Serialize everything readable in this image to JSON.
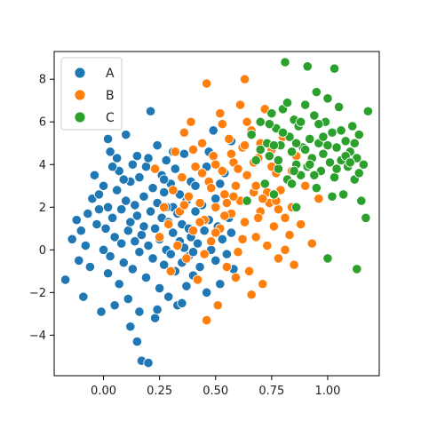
{
  "chart_data": {
    "type": "scatter",
    "title": "",
    "xlabel": "",
    "ylabel": "",
    "xlim": [
      -0.22,
      1.23
    ],
    "ylim": [
      -5.9,
      9.3
    ],
    "xticks": [
      0.0,
      0.25,
      0.5,
      0.75,
      1.0
    ],
    "xtick_labels": [
      "0.00",
      "0.25",
      "0.50",
      "0.75",
      "1.00"
    ],
    "yticks": [
      -4,
      -2,
      0,
      2,
      4,
      6,
      8
    ],
    "ytick_labels": [
      "−4",
      "−2",
      "0",
      "2",
      "4",
      "6",
      "8"
    ],
    "grid": false,
    "legend": {
      "placement": "top-left"
    },
    "series": [
      {
        "name": "A",
        "color": "#1f77b4",
        "points": [
          [
            -0.17,
            -1.4
          ],
          [
            -0.14,
            0.5
          ],
          [
            -0.12,
            1.4
          ],
          [
            -0.11,
            -0.5
          ],
          [
            -0.1,
            0.9
          ],
          [
            -0.09,
            -2.2
          ],
          [
            -0.08,
            0.2
          ],
          [
            -0.07,
            1.7
          ],
          [
            -0.06,
            -0.8
          ],
          [
            -0.05,
            2.4
          ],
          [
            -0.04,
            3.5
          ],
          [
            -0.03,
            1.2
          ],
          [
            -0.02,
            2.6
          ],
          [
            -0.01,
            -2.9
          ],
          [
            0.0,
            0.0
          ],
          [
            0.0,
            3.0
          ],
          [
            0.01,
            1.0
          ],
          [
            0.02,
            -1.1
          ],
          [
            0.02,
            2.0
          ],
          [
            0.03,
            -0.3
          ],
          [
            0.03,
            4.6
          ],
          [
            0.04,
            1.5
          ],
          [
            0.05,
            -2.6
          ],
          [
            0.05,
            0.6
          ],
          [
            0.06,
            2.8
          ],
          [
            0.07,
            3.7
          ],
          [
            0.07,
            -1.6
          ],
          [
            0.08,
            0.3
          ],
          [
            0.08,
            1.9
          ],
          [
            0.09,
            -0.6
          ],
          [
            0.1,
            2.3
          ],
          [
            0.1,
            5.4
          ],
          [
            0.11,
            0.9
          ],
          [
            0.11,
            -2.3
          ],
          [
            0.12,
            3.2
          ],
          [
            0.12,
            1.3
          ],
          [
            0.13,
            -0.9
          ],
          [
            0.13,
            4.0
          ],
          [
            0.14,
            0.4
          ],
          [
            0.14,
            2.1
          ],
          [
            0.15,
            -4.3
          ],
          [
            0.15,
            1.6
          ],
          [
            0.16,
            -2.9
          ],
          [
            0.16,
            3.4
          ],
          [
            0.17,
            0.7
          ],
          [
            0.17,
            -5.2
          ],
          [
            0.18,
            2.5
          ],
          [
            0.18,
            1.1
          ],
          [
            0.19,
            -1.3
          ],
          [
            0.19,
            3.9
          ],
          [
            0.2,
            0.2
          ],
          [
            0.2,
            -5.3
          ],
          [
            0.21,
            1.8
          ],
          [
            0.21,
            6.5
          ],
          [
            0.22,
            -0.4
          ],
          [
            0.22,
            2.9
          ],
          [
            0.23,
            -3.2
          ],
          [
            0.23,
            1.0
          ],
          [
            0.24,
            4.9
          ],
          [
            0.24,
            2.2
          ],
          [
            0.25,
            -1.8
          ],
          [
            0.25,
            0.5
          ],
          [
            0.26,
            3.5
          ],
          [
            0.26,
            1.5
          ],
          [
            0.27,
            -0.7
          ],
          [
            0.27,
            2.7
          ],
          [
            0.28,
            0.0
          ],
          [
            0.28,
            4.2
          ],
          [
            0.29,
            -2.2
          ],
          [
            0.29,
            1.3
          ],
          [
            0.3,
            3.1
          ],
          [
            0.3,
            -0.2
          ],
          [
            0.31,
            2.0
          ],
          [
            0.31,
            0.8
          ],
          [
            0.32,
            -1.0
          ],
          [
            0.32,
            3.8
          ],
          [
            0.33,
            1.7
          ],
          [
            0.33,
            -2.6
          ],
          [
            0.34,
            0.4
          ],
          [
            0.34,
            2.6
          ],
          [
            0.35,
            -0.6
          ],
          [
            0.35,
            1.2
          ],
          [
            0.36,
            4.5
          ],
          [
            0.36,
            0.1
          ],
          [
            0.37,
            -1.7
          ],
          [
            0.37,
            2.3
          ],
          [
            0.38,
            1.0
          ],
          [
            0.38,
            -0.3
          ],
          [
            0.39,
            0.6
          ],
          [
            0.39,
            3.2
          ],
          [
            0.4,
            -1.2
          ],
          [
            0.41,
            1.8
          ],
          [
            0.42,
            0.3
          ],
          [
            0.43,
            -0.8
          ],
          [
            0.44,
            2.1
          ],
          [
            0.45,
            0.9
          ],
          [
            0.46,
            -2.0
          ],
          [
            0.47,
            1.4
          ],
          [
            0.48,
            0.0
          ],
          [
            0.49,
            5.6
          ],
          [
            0.5,
            -0.5
          ],
          [
            0.5,
            2.4
          ],
          [
            0.51,
            1.1
          ],
          [
            0.52,
            -1.6
          ],
          [
            0.53,
            0.5
          ],
          [
            0.54,
            3.6
          ],
          [
            0.55,
            -0.2
          ],
          [
            0.56,
            1.5
          ],
          [
            0.57,
            0.8
          ],
          [
            0.58,
            -0.9
          ],
          [
            0.02,
            5.2
          ],
          [
            0.06,
            4.3
          ],
          [
            0.09,
            3.3
          ],
          [
            0.12,
            -3.6
          ],
          [
            0.15,
            4.4
          ],
          [
            0.2,
            4.3
          ],
          [
            0.24,
            -2.8
          ],
          [
            0.27,
            3.3
          ],
          [
            0.31,
            4.6
          ],
          [
            0.35,
            -2.5
          ],
          [
            0.41,
            3.0
          ],
          [
            0.46,
            3.9
          ],
          [
            0.52,
            3.1
          ],
          [
            -0.02,
            1.9
          ],
          [
            0.04,
            3.9
          ],
          [
            0.16,
            -0.1
          ],
          [
            0.28,
            2.0
          ],
          [
            0.4,
            -0.1
          ],
          [
            0.47,
            4.6
          ],
          [
            0.57,
            5.1
          ]
        ]
      },
      {
        "name": "B",
        "color": "#ff7f0e",
        "points": [
          [
            0.23,
            3.8
          ],
          [
            0.25,
            0.6
          ],
          [
            0.27,
            2.0
          ],
          [
            0.29,
            1.2
          ],
          [
            0.3,
            -1.0
          ],
          [
            0.31,
            2.8
          ],
          [
            0.32,
            4.6
          ],
          [
            0.33,
            0.2
          ],
          [
            0.34,
            1.8
          ],
          [
            0.35,
            3.4
          ],
          [
            0.36,
            5.5
          ],
          [
            0.37,
            -0.4
          ],
          [
            0.38,
            2.5
          ],
          [
            0.39,
            6.0
          ],
          [
            0.4,
            0.9
          ],
          [
            0.41,
            3.9
          ],
          [
            0.42,
            -1.4
          ],
          [
            0.43,
            2.2
          ],
          [
            0.44,
            5.0
          ],
          [
            0.45,
            1.4
          ],
          [
            0.46,
            7.8
          ],
          [
            0.46,
            -3.3
          ],
          [
            0.47,
            3.2
          ],
          [
            0.48,
            0.4
          ],
          [
            0.49,
            4.4
          ],
          [
            0.5,
            2.0
          ],
          [
            0.51,
            -2.6
          ],
          [
            0.52,
            6.4
          ],
          [
            0.52,
            1.0
          ],
          [
            0.53,
            3.7
          ],
          [
            0.54,
            2.6
          ],
          [
            0.55,
            -0.8
          ],
          [
            0.56,
            5.2
          ],
          [
            0.57,
            1.7
          ],
          [
            0.58,
            4.1
          ],
          [
            0.59,
            3.0
          ],
          [
            0.6,
            -0.1
          ],
          [
            0.61,
            6.8
          ],
          [
            0.61,
            2.3
          ],
          [
            0.62,
            4.8
          ],
          [
            0.63,
            8.0
          ],
          [
            0.63,
            1.3
          ],
          [
            0.64,
            3.5
          ],
          [
            0.65,
            -1.0
          ],
          [
            0.66,
            5.6
          ],
          [
            0.67,
            2.7
          ],
          [
            0.68,
            0.6
          ],
          [
            0.69,
            4.3
          ],
          [
            0.7,
            1.8
          ],
          [
            0.71,
            -1.6
          ],
          [
            0.72,
            3.1
          ],
          [
            0.72,
            6.6
          ],
          [
            0.73,
            0.2
          ],
          [
            0.74,
            2.2
          ],
          [
            0.75,
            4.7
          ],
          [
            0.76,
            1.1
          ],
          [
            0.77,
            3.6
          ],
          [
            0.78,
            -0.4
          ],
          [
            0.79,
            2.8
          ],
          [
            0.8,
            5.3
          ],
          [
            0.81,
            1.5
          ],
          [
            0.82,
            3.3
          ],
          [
            0.83,
            0.7
          ],
          [
            0.84,
            2.0
          ],
          [
            0.85,
            -0.7
          ],
          [
            0.86,
            4.4
          ],
          [
            0.88,
            1.2
          ],
          [
            0.9,
            3.0
          ],
          [
            0.93,
            0.3
          ],
          [
            0.96,
            2.4
          ],
          [
            0.4,
            4.7
          ],
          [
            0.44,
            3.6
          ],
          [
            0.48,
            2.9
          ],
          [
            0.53,
            5.9
          ],
          [
            0.57,
            4.5
          ],
          [
            0.6,
            3.8
          ],
          [
            0.64,
            6.0
          ],
          [
            0.67,
            4.1
          ],
          [
            0.7,
            5.0
          ],
          [
            0.75,
            3.9
          ],
          [
            0.45,
            -0.2
          ],
          [
            0.5,
            0.8
          ],
          [
            0.55,
            2.2
          ],
          [
            0.59,
            -1.3
          ],
          [
            0.62,
            0.5
          ],
          [
            0.66,
            -2.1
          ],
          [
            0.69,
            1.5
          ],
          [
            0.73,
            2.7
          ],
          [
            0.78,
            1.9
          ],
          [
            0.81,
            0.0
          ],
          [
            0.36,
            2.1
          ],
          [
            0.43,
            1.3
          ],
          [
            0.5,
            4.0
          ],
          [
            0.54,
            1.6
          ],
          [
            0.58,
            2.5
          ],
          [
            0.63,
            4.9
          ],
          [
            0.68,
            3.0
          ],
          [
            0.71,
            2.4
          ],
          [
            0.77,
            2.3
          ],
          [
            0.84,
            3.7
          ]
        ]
      },
      {
        "name": "C",
        "color": "#2ca02c",
        "points": [
          [
            0.64,
            2.3
          ],
          [
            0.66,
            5.4
          ],
          [
            0.68,
            4.2
          ],
          [
            0.7,
            6.0
          ],
          [
            0.72,
            3.1
          ],
          [
            0.73,
            5.0
          ],
          [
            0.74,
            4.4
          ],
          [
            0.75,
            6.4
          ],
          [
            0.76,
            2.6
          ],
          [
            0.77,
            5.7
          ],
          [
            0.78,
            3.8
          ],
          [
            0.79,
            4.9
          ],
          [
            0.8,
            6.6
          ],
          [
            0.81,
            8.8
          ],
          [
            0.82,
            3.3
          ],
          [
            0.83,
            5.3
          ],
          [
            0.84,
            4.6
          ],
          [
            0.85,
            6.1
          ],
          [
            0.86,
            2.0
          ],
          [
            0.86,
            4.0
          ],
          [
            0.87,
            5.8
          ],
          [
            0.88,
            3.5
          ],
          [
            0.89,
            4.8
          ],
          [
            0.9,
            6.8
          ],
          [
            0.91,
            8.6
          ],
          [
            0.91,
            3.9
          ],
          [
            0.92,
            5.2
          ],
          [
            0.93,
            4.3
          ],
          [
            0.94,
            6.3
          ],
          [
            0.95,
            2.9
          ],
          [
            0.96,
            5.0
          ],
          [
            0.97,
            3.7
          ],
          [
            0.98,
            4.5
          ],
          [
            0.99,
            6.0
          ],
          [
            1.0,
            -0.4
          ],
          [
            1.01,
            4.1
          ],
          [
            1.02,
            5.5
          ],
          [
            1.03,
            8.5
          ],
          [
            1.03,
            3.4
          ],
          [
            1.04,
            4.8
          ],
          [
            1.05,
            6.7
          ],
          [
            1.06,
            4.2
          ],
          [
            1.07,
            2.6
          ],
          [
            1.08,
            5.1
          ],
          [
            1.09,
            3.9
          ],
          [
            1.1,
            4.6
          ],
          [
            1.11,
            5.8
          ],
          [
            1.12,
            3.3
          ],
          [
            1.13,
            -0.9
          ],
          [
            1.13,
            4.3
          ],
          [
            1.14,
            5.4
          ],
          [
            1.15,
            2.3
          ],
          [
            1.16,
            4.0
          ],
          [
            1.17,
            1.5
          ],
          [
            1.18,
            6.5
          ],
          [
            0.76,
            4.9
          ],
          [
            0.8,
            5.5
          ],
          [
            0.84,
            3.1
          ],
          [
            0.88,
            6.0
          ],
          [
            0.92,
            4.0
          ],
          [
            0.96,
            5.9
          ],
          [
            1.0,
            4.9
          ],
          [
            1.04,
            3.8
          ],
          [
            1.08,
            4.4
          ],
          [
            1.12,
            5.0
          ],
          [
            0.7,
            4.7
          ],
          [
            0.74,
            5.9
          ],
          [
            0.78,
            4.2
          ],
          [
            0.82,
            6.9
          ],
          [
            0.86,
            5.0
          ],
          [
            0.9,
            4.7
          ],
          [
            0.94,
            3.5
          ],
          [
            0.98,
            5.3
          ],
          [
            1.02,
            2.5
          ],
          [
            1.06,
            5.6
          ],
          [
            1.1,
            4.1
          ],
          [
            1.14,
            3.6
          ],
          [
            1.0,
            7.1
          ],
          [
            0.95,
            7.4
          ],
          [
            0.85,
            3.7
          ]
        ]
      }
    ]
  }
}
